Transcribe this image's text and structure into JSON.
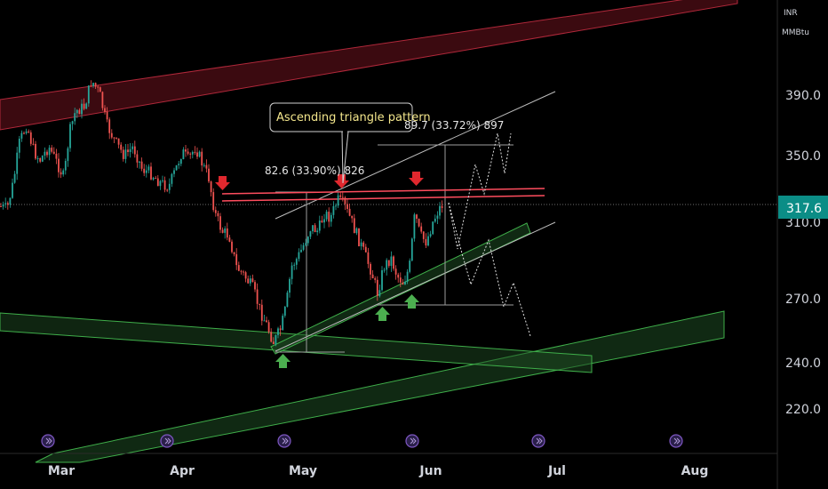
{
  "chart_data": {
    "type": "candlestick",
    "currency": "INR",
    "unit": "MMBtu",
    "current_price": "317.6",
    "price_ticks": [
      "390.0",
      "350.0",
      "310.0",
      "270.0",
      "240.0",
      "220.0"
    ],
    "months": [
      "Mar",
      "Apr",
      "May",
      "Jun",
      "Jul",
      "Aug"
    ],
    "pattern_label": "Ascending triangle pattern",
    "measure_labels": [
      "82.6 (33.90%) 826",
      "89.7 (33.72%) 897"
    ],
    "colors": {
      "up": "#26a69a",
      "down": "#ef5350",
      "resistance": "#ff4d5e",
      "support_channel": "#3fae4a",
      "upper_channel": "#9e1b2a",
      "price_tag": "#0b8d86",
      "arrow_down": "#e0282e",
      "arrow_up": "#4caf50"
    },
    "grid": false
  }
}
